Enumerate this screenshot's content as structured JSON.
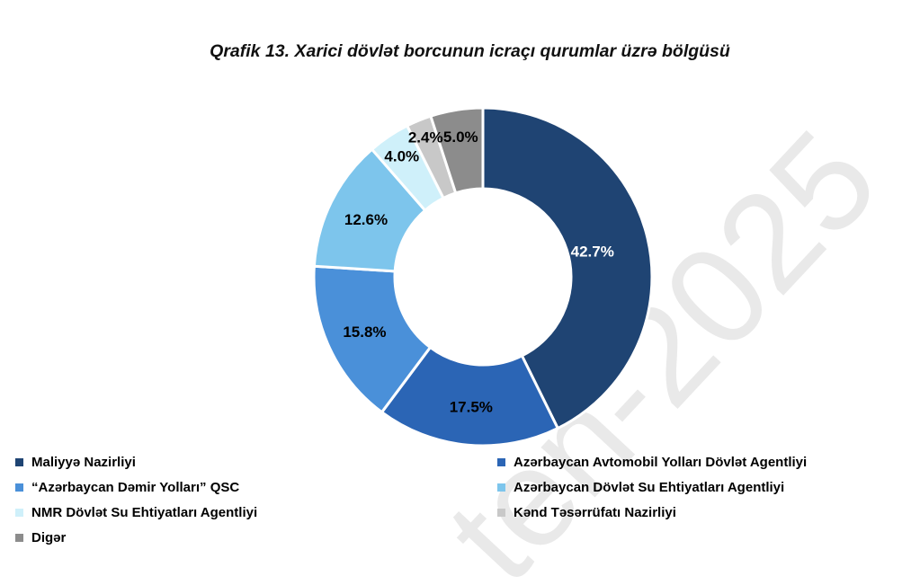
{
  "title": "Qrafik 13. Xarici dövlət borcunun icraçı qurumlar üzrə bölgüsü",
  "watermark_text": "ten-2025",
  "watermark_color": "#E9E9E9",
  "background_color": "#FFFFFF",
  "chart_data": {
    "type": "pie",
    "subtype": "donut",
    "title": "Qrafik 13. Xarici dövlət borcunun icraçı qurumlar üzrə bölgüsü",
    "unit": "%",
    "start_angle_deg": 0,
    "direction": "clockwise",
    "donut_hole_ratio": 0.52,
    "slice_gap_color": "#FFFFFF",
    "legend_position": "bottom",
    "legend_columns": 2,
    "slices": [
      {
        "label": "Maliyyə Nazirliyi",
        "value": 42.7,
        "display": "42.7%",
        "color": "#1F4473",
        "label_color": "#FFFFFF"
      },
      {
        "label": "Azərbaycan Avtomobil Yolları Dövlət Agentliyi",
        "value": 17.5,
        "display": "17.5%",
        "color": "#2B65B5",
        "label_color": "#000000"
      },
      {
        "label": "“Azərbaycan Dəmir Yolları” QSC",
        "value": 15.8,
        "display": "15.8%",
        "color": "#4A90D9",
        "label_color": "#000000"
      },
      {
        "label": "Azərbaycan Dövlət Su Ehtiyatları Agentliyi",
        "value": 12.6,
        "display": "12.6%",
        "color": "#7DC5EC",
        "label_color": "#000000"
      },
      {
        "label": "NMR Dövlət Su Ehtiyatları Agentliyi",
        "value": 4.0,
        "display": "4.0%",
        "color": "#CFF0FA",
        "label_color": "#000000"
      },
      {
        "label": "Kənd Təsərrüfatı Nazirliyi",
        "value": 2.4,
        "display": "2.4%",
        "color": "#C8C8C8",
        "label_color": "#000000"
      },
      {
        "label": "Digər",
        "value": 5.0,
        "display": "5.0%",
        "color": "#8C8C8C",
        "label_color": "#000000"
      }
    ]
  }
}
